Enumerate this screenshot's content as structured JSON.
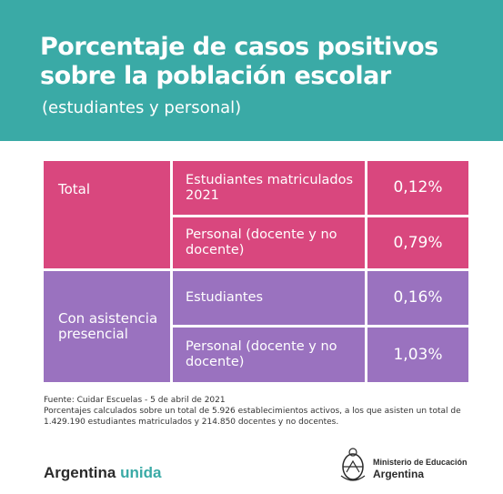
{
  "header": {
    "title": "Porcentaje de casos positivos sobre la población escolar",
    "subtitle": "(estudiantes y personal)"
  },
  "table": {
    "groups": [
      {
        "label": "Total",
        "rows": [
          {
            "desc": "Estudiantes matriculados 2021",
            "value": "0,12%"
          },
          {
            "desc": "Personal (docente y no docente)",
            "value": "0,79%"
          }
        ]
      },
      {
        "label": "Con asistencia presencial",
        "rows": [
          {
            "desc": "Estudiantes",
            "value": "0,16%"
          },
          {
            "desc": "Personal (docente y no docente)",
            "value": "1,03%"
          }
        ]
      }
    ]
  },
  "footer": {
    "source": "Fuente: Cuidar Escuelas - 5 de abril de 2021",
    "note": "Porcentajes calculados sobre un total de 5.926 establecimientos activos, a los que asisten un total de 1.429.190 estudiantes matriculados y 214.850 docentes y no docentes."
  },
  "brand": {
    "main": "Argentina",
    "accent": "unida"
  },
  "ministry": {
    "line1": "Ministerio de Educación",
    "line2": "Argentina"
  },
  "colors": {
    "header": "#3aaaa6",
    "total_group": "#d9477e",
    "presencial_group": "#9a72bf"
  }
}
